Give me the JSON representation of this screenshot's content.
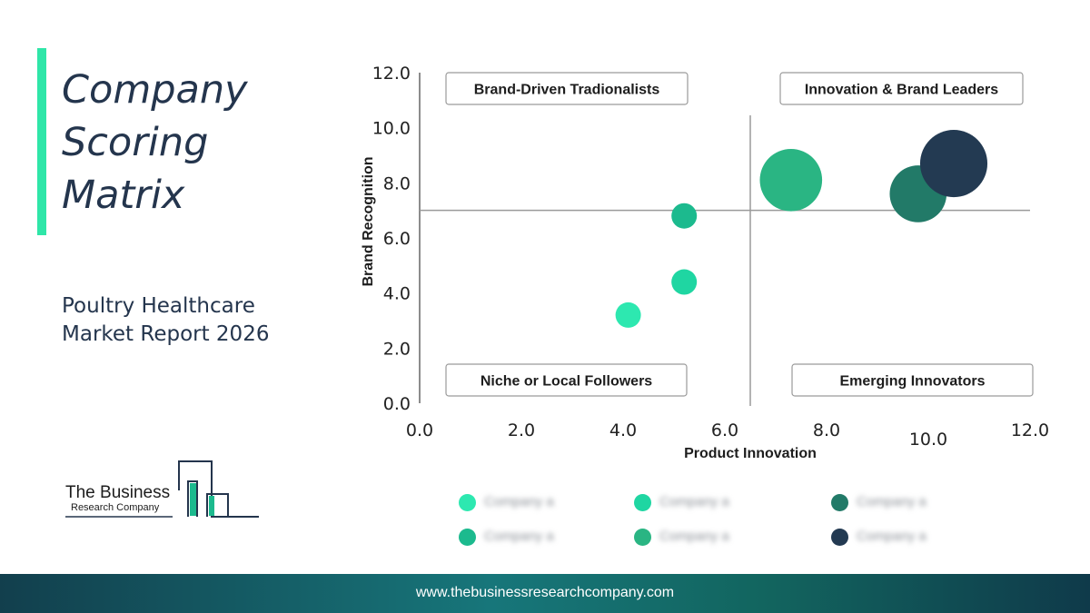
{
  "title": "Company Scoring Matrix",
  "subtitle": "Poultry Healthcare\nMarket Report 2026",
  "logo": {
    "line1": "The Business",
    "line2": "Research Company"
  },
  "footer": {
    "url": "www.thebusinessresearchcompany.com"
  },
  "colors": {
    "accent": "#2fe6a8",
    "title": "#24354d",
    "c1": "#2de8b0",
    "c2": "#1fd6a2",
    "c3": "#1cba8e",
    "c4": "#2ab583",
    "c5": "#227a68",
    "c6": "#233a52"
  },
  "chart_data": {
    "type": "scatter",
    "subtype": "bubble",
    "xlabel": "Product Innovation",
    "ylabel": "Brand Recognition",
    "xlim": [
      0,
      12
    ],
    "ylim": [
      0,
      12
    ],
    "x_ticks": [
      "0.0",
      "2.0",
      "4.0",
      "6.0",
      "8.0",
      "10.0",
      "12.0"
    ],
    "y_ticks": [
      "0.0",
      "2.0",
      "4.0",
      "6.0",
      "8.0",
      "10.0",
      "12.0"
    ],
    "divider": {
      "x": 6.5,
      "y": 7.0
    },
    "quadrants": [
      {
        "label": "Brand-Driven Tradionalists",
        "position": "top-left"
      },
      {
        "label": "Innovation & Brand Leaders",
        "position": "top-right"
      },
      {
        "label": "Niche or Local Followers",
        "position": "bottom-left"
      },
      {
        "label": "Emerging Innovators",
        "position": "bottom-right"
      }
    ],
    "points": [
      {
        "x": 4.1,
        "y": 3.2,
        "size": 1,
        "color": "#2de8b0"
      },
      {
        "x": 5.2,
        "y": 4.4,
        "size": 1,
        "color": "#1fd6a2"
      },
      {
        "x": 5.2,
        "y": 6.8,
        "size": 1,
        "color": "#1cba8e"
      },
      {
        "x": 7.3,
        "y": 8.1,
        "size": 6,
        "color": "#2ab583"
      },
      {
        "x": 9.8,
        "y": 7.6,
        "size": 5,
        "color": "#227a68"
      },
      {
        "x": 10.5,
        "y": 8.7,
        "size": 7,
        "color": "#233a52"
      }
    ],
    "grid": false,
    "legend": {
      "position": "bottom",
      "entries": [
        {
          "name": "Company a",
          "color": "#2de8b0"
        },
        {
          "name": "Company a",
          "color": "#1fd6a2"
        },
        {
          "name": "Company a",
          "color": "#227a68"
        },
        {
          "name": "Company a",
          "color": "#1cba8e"
        },
        {
          "name": "Company a",
          "color": "#2ab583"
        },
        {
          "name": "Company a",
          "color": "#233a52"
        }
      ]
    }
  }
}
